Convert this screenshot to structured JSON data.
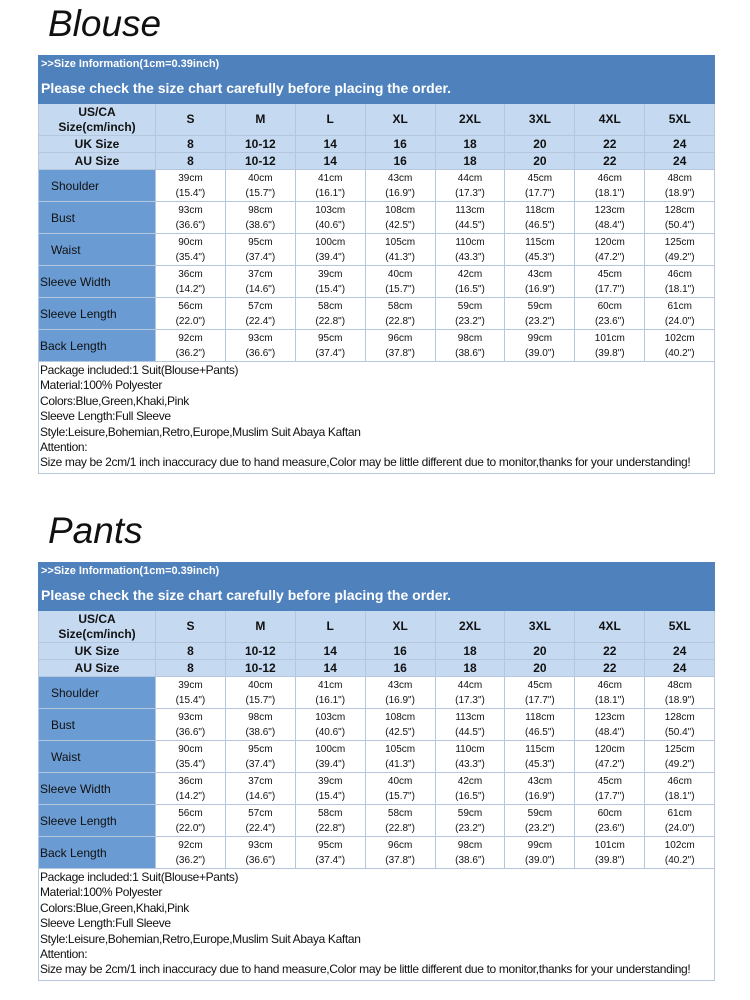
{
  "sections": [
    {
      "title": "Blouse",
      "info": ">>Size Information(1cm=0.39inch)",
      "notice": "Please check the size chart carefully before placing the order.",
      "size_header": [
        "US/CA",
        "Size(cm/inch)"
      ],
      "sizes": [
        "S",
        "M",
        "L",
        "XL",
        "2XL",
        "3XL",
        "4XL",
        "5XL"
      ],
      "uk": {
        "label": "UK Size",
        "values": [
          "8",
          "10-12",
          "14",
          "16",
          "18",
          "20",
          "22",
          "24"
        ]
      },
      "au": {
        "label": "AU Size",
        "values": [
          "8",
          "10-12",
          "14",
          "16",
          "18",
          "20",
          "22",
          "24"
        ]
      },
      "rows": [
        {
          "label": "Shoulder",
          "cells": [
            [
              "39cm",
              "(15.4\")"
            ],
            [
              "40cm",
              "(15.7\")"
            ],
            [
              "41cm",
              "(16.1\")"
            ],
            [
              "43cm",
              "(16.9\")"
            ],
            [
              "44cm",
              "(17.3\")"
            ],
            [
              "45cm",
              "(17.7\")"
            ],
            [
              "46cm",
              "(18.1\")"
            ],
            [
              "48cm",
              "(18.9\")"
            ]
          ]
        },
        {
          "label": "Bust",
          "cells": [
            [
              "93cm",
              "(36.6\")"
            ],
            [
              "98cm",
              "(38.6\")"
            ],
            [
              "103cm",
              "(40.6\")"
            ],
            [
              "108cm",
              "(42.5\")"
            ],
            [
              "113cm",
              "(44.5\")"
            ],
            [
              "118cm",
              "(46.5\")"
            ],
            [
              "123cm",
              "(48.4\")"
            ],
            [
              "128cm",
              "(50.4\")"
            ]
          ]
        },
        {
          "label": "Waist",
          "cells": [
            [
              "90cm",
              "(35.4\")"
            ],
            [
              "95cm",
              "(37.4\")"
            ],
            [
              "100cm",
              "(39.4\")"
            ],
            [
              "105cm",
              "(41.3\")"
            ],
            [
              "110cm",
              "(43.3\")"
            ],
            [
              "115cm",
              "(45.3\")"
            ],
            [
              "120cm",
              "(47.2\")"
            ],
            [
              "125cm",
              "(49.2\")"
            ]
          ]
        },
        {
          "label": "Sleeve Width",
          "cells": [
            [
              "36cm",
              "(14.2\")"
            ],
            [
              "37cm",
              "(14.6\")"
            ],
            [
              "39cm",
              "(15.4\")"
            ],
            [
              "40cm",
              "(15.7\")"
            ],
            [
              "42cm",
              "(16.5\")"
            ],
            [
              "43cm",
              "(16.9\")"
            ],
            [
              "45cm",
              "(17.7\")"
            ],
            [
              "46cm",
              "(18.1\")"
            ]
          ]
        },
        {
          "label": "Sleeve Length",
          "cells": [
            [
              "56cm",
              "(22.0\")"
            ],
            [
              "57cm",
              "(22.4\")"
            ],
            [
              "58cm",
              "(22.8\")"
            ],
            [
              "58cm",
              "(22.8\")"
            ],
            [
              "59cm",
              "(23.2\")"
            ],
            [
              "59cm",
              "(23.2\")"
            ],
            [
              "60cm",
              "(23.6\")"
            ],
            [
              "61cm",
              "(24.0\")"
            ]
          ]
        },
        {
          "label": "Back Length",
          "cells": [
            [
              "92cm",
              "(36.2\")"
            ],
            [
              "93cm",
              "(36.6\")"
            ],
            [
              "95cm",
              "(37.4\")"
            ],
            [
              "96cm",
              "(37.8\")"
            ],
            [
              "98cm",
              "(38.6\")"
            ],
            [
              "99cm",
              "(39.0\")"
            ],
            [
              "101cm",
              "(39.8\")"
            ],
            [
              "102cm",
              "(40.2\")"
            ]
          ]
        }
      ],
      "notes": [
        "Package included:1 Suit(Blouse+Pants)",
        "Material:100% Polyester",
        "Colors:Blue,Green,Khaki,Pink",
        "Sleeve Length:Full Sleeve",
        "Style:Leisure,Bohemian,Retro,Europe,Muslim Suit Abaya Kaftan",
        "Attention:",
        "Size may be 2cm/1 inch inaccuracy due to hand measure,Color may be little different due to monitor,thanks for your understanding!"
      ]
    },
    {
      "title": "Pants",
      "info": ">>Size Information(1cm=0.39inch)",
      "notice": "Please check the size chart carefully before placing the order.",
      "size_header": [
        "US/CA",
        "Size(cm/inch)"
      ],
      "sizes": [
        "S",
        "M",
        "L",
        "XL",
        "2XL",
        "3XL",
        "4XL",
        "5XL"
      ],
      "uk": {
        "label": "UK Size",
        "values": [
          "8",
          "10-12",
          "14",
          "16",
          "18",
          "20",
          "22",
          "24"
        ]
      },
      "au": {
        "label": "AU Size",
        "values": [
          "8",
          "10-12",
          "14",
          "16",
          "18",
          "20",
          "22",
          "24"
        ]
      },
      "rows": [
        {
          "label": "Shoulder",
          "cells": [
            [
              "39cm",
              "(15.4\")"
            ],
            [
              "40cm",
              "(15.7\")"
            ],
            [
              "41cm",
              "(16.1\")"
            ],
            [
              "43cm",
              "(16.9\")"
            ],
            [
              "44cm",
              "(17.3\")"
            ],
            [
              "45cm",
              "(17.7\")"
            ],
            [
              "46cm",
              "(18.1\")"
            ],
            [
              "48cm",
              "(18.9\")"
            ]
          ]
        },
        {
          "label": "Bust",
          "cells": [
            [
              "93cm",
              "(36.6\")"
            ],
            [
              "98cm",
              "(38.6\")"
            ],
            [
              "103cm",
              "(40.6\")"
            ],
            [
              "108cm",
              "(42.5\")"
            ],
            [
              "113cm",
              "(44.5\")"
            ],
            [
              "118cm",
              "(46.5\")"
            ],
            [
              "123cm",
              "(48.4\")"
            ],
            [
              "128cm",
              "(50.4\")"
            ]
          ]
        },
        {
          "label": "Waist",
          "cells": [
            [
              "90cm",
              "(35.4\")"
            ],
            [
              "95cm",
              "(37.4\")"
            ],
            [
              "100cm",
              "(39.4\")"
            ],
            [
              "105cm",
              "(41.3\")"
            ],
            [
              "110cm",
              "(43.3\")"
            ],
            [
              "115cm",
              "(45.3\")"
            ],
            [
              "120cm",
              "(47.2\")"
            ],
            [
              "125cm",
              "(49.2\")"
            ]
          ]
        },
        {
          "label": "Sleeve Width",
          "cells": [
            [
              "36cm",
              "(14.2\")"
            ],
            [
              "37cm",
              "(14.6\")"
            ],
            [
              "39cm",
              "(15.4\")"
            ],
            [
              "40cm",
              "(15.7\")"
            ],
            [
              "42cm",
              "(16.5\")"
            ],
            [
              "43cm",
              "(16.9\")"
            ],
            [
              "45cm",
              "(17.7\")"
            ],
            [
              "46cm",
              "(18.1\")"
            ]
          ]
        },
        {
          "label": "Sleeve Length",
          "cells": [
            [
              "56cm",
              "(22.0\")"
            ],
            [
              "57cm",
              "(22.4\")"
            ],
            [
              "58cm",
              "(22.8\")"
            ],
            [
              "58cm",
              "(22.8\")"
            ],
            [
              "59cm",
              "(23.2\")"
            ],
            [
              "59cm",
              "(23.2\")"
            ],
            [
              "60cm",
              "(23.6\")"
            ],
            [
              "61cm",
              "(24.0\")"
            ]
          ]
        },
        {
          "label": "Back Length",
          "cells": [
            [
              "92cm",
              "(36.2\")"
            ],
            [
              "93cm",
              "(36.6\")"
            ],
            [
              "95cm",
              "(37.4\")"
            ],
            [
              "96cm",
              "(37.8\")"
            ],
            [
              "98cm",
              "(38.6\")"
            ],
            [
              "99cm",
              "(39.0\")"
            ],
            [
              "101cm",
              "(39.8\")"
            ],
            [
              "102cm",
              "(40.2\")"
            ]
          ]
        }
      ],
      "notes": [
        "Package included:1 Suit(Blouse+Pants)",
        "Material:100% Polyester",
        "Colors:Blue,Green,Khaki,Pink",
        "Sleeve Length:Full Sleeve",
        "Style:Leisure,Bohemian,Retro,Europe,Muslim Suit Abaya Kaftan",
        "Attention:",
        "Size may be 2cm/1 inch inaccuracy due to hand measure,Color may be little different due to monitor,thanks for your understanding!"
      ]
    }
  ]
}
